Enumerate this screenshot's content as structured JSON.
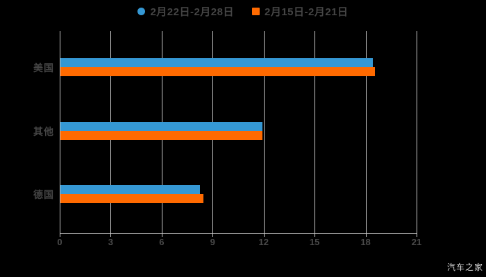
{
  "legend": {
    "items": [
      {
        "label": "2月22日-2月28日",
        "color": "#3598d4",
        "shape": "circle"
      },
      {
        "label": "2月15日-2月21日",
        "color": "#ff6a00",
        "shape": "square"
      }
    ]
  },
  "watermark": "汽车之家",
  "chart_data": {
    "type": "bar",
    "orientation": "horizontal",
    "title": "",
    "xlabel": "",
    "ylabel": "",
    "categories": [
      "美国",
      "其他",
      "德国"
    ],
    "series": [
      {
        "name": "2月22日-2月28日",
        "color": "#3598d4",
        "values": [
          18.4,
          11.9,
          8.2
        ]
      },
      {
        "name": "2月15日-2月21日",
        "color": "#ff6a00",
        "values": [
          18.5,
          11.9,
          8.4
        ]
      }
    ],
    "xlim": [
      0,
      21
    ],
    "xticks": [
      0,
      3,
      6,
      9,
      12,
      15,
      18,
      21
    ],
    "grid": true,
    "legend_position": "top-center",
    "background": "#000000",
    "gridline_color": "#c9c9c9",
    "text_color": "#454545"
  }
}
